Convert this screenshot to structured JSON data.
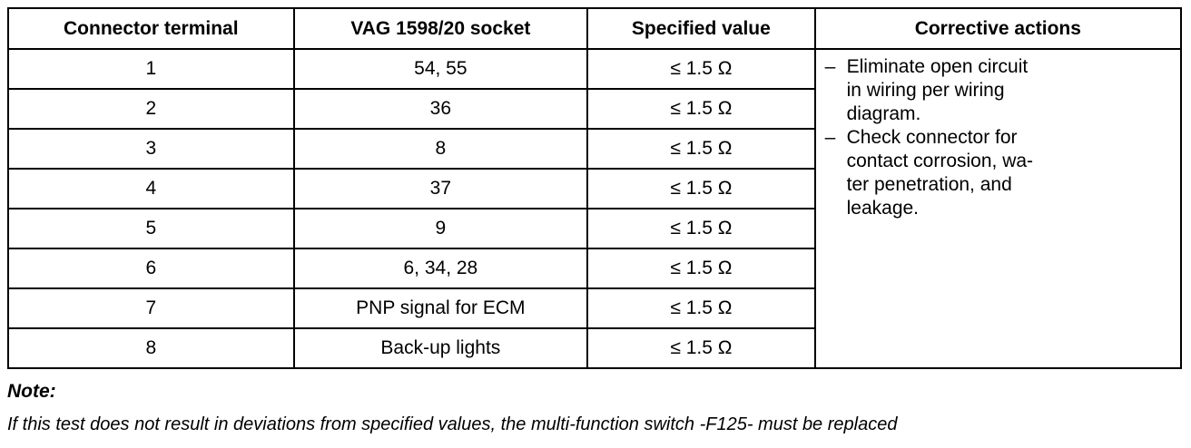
{
  "table": {
    "header": [
      "Connector terminal",
      "VAG 1598/20 socket",
      "Specified value",
      "Corrective actions"
    ],
    "rows": [
      [
        "1",
        "54, 55",
        "≤ 1.5 Ω"
      ],
      [
        "2",
        "36",
        "≤ 1.5 Ω"
      ],
      [
        "3",
        "8",
        "≤ 1.5 Ω"
      ],
      [
        "4",
        "37",
        "≤ 1.5 Ω"
      ],
      [
        "5",
        "9",
        "≤ 1.5 Ω"
      ],
      [
        "6",
        "6, 34, 28",
        "≤ 1.5 Ω"
      ],
      [
        "7",
        "PNP signal for ECM",
        "≤ 1.5 Ω"
      ],
      [
        "8",
        "Back-up lights",
        "≤ 1.5 Ω"
      ]
    ],
    "corrective_actions": [
      [
        "Eliminate open circuit",
        "in wiring per wiring",
        "diagram."
      ],
      [
        "Check connector for",
        "contact corrosion, wa-",
        "ter penetration, and",
        "leakage."
      ]
    ]
  },
  "note": {
    "title": "Note:",
    "text": "If this test does not result in deviations from specified values, the multi-function switch -F125- must be replaced"
  }
}
